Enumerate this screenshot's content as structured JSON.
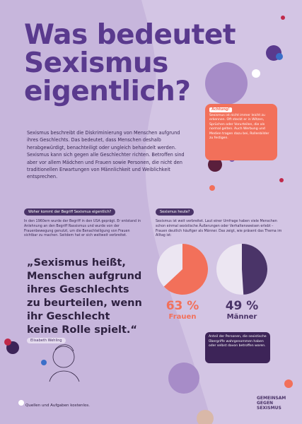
{
  "title": [
    "Was bedeutet",
    "Sexismus",
    "eigentlich?"
  ],
  "notice": {
    "heading": "Achtung!",
    "text": "Sexismus ist nicht immer leicht zu erkennen. Oft steckt er in Witzen, Sprüchen oder Vorurteilen, die als normal gelten. Auch Werbung und Medien tragen dazu bei, Rollenbilder zu festigen."
  },
  "intro": "Sexismus beschreibt die Diskriminierung von Menschen aufgrund ihres Geschlechts. Das bedeutet, dass Menschen deshalb herabgewürdigt, benachteiligt oder ungleich behandelt werden. Sexismus kann sich gegen alle Geschlechter richten. Betroffen sind aber vor allem Mädchen und Frauen sowie Personen, die nicht den traditionellen Erwartungen von Männlichkeit und Weiblichkeit entsprechen.",
  "sections": [
    {
      "heading": "Woher kommt der Begriff Sexismus eigentlich?",
      "text": "In den 1960ern wurde der Begriff in den USA geprägt. Er entstand in Anlehnung an den Begriff Rassismus und wurde von der Frauenbewegung genutzt, um die Benachteiligung von Frauen sichtbar zu machen. Seitdem hat er sich weltweit verbreitet."
    },
    {
      "heading": "Sexismus heute?",
      "text": "Sexismus ist weit verbreitet. Laut einer Umfrage haben viele Menschen schon einmal sexistische Äußerungen oder Verhaltensweisen erlebt – Frauen deutlich häufiger als Männer. Das zeigt, wie präsent das Thema im Alltag ist:"
    }
  ],
  "quote": {
    "lines": [
      "„Sexismus heißt,",
      "Menschen aufgrund",
      "ihres Geschlechts",
      "zu beurteilen, wenn",
      "ihr Geschlecht",
      "keine Rolle spielt.“"
    ],
    "author": "Elisabeth Wehling"
  },
  "stats": [
    {
      "value": 63,
      "label": "63 %",
      "group": "Frauen",
      "color": "#f2705a"
    },
    {
      "value": 49,
      "label": "49 %",
      "group": "Männer",
      "color": "#4a3468"
    }
  ],
  "callout": "Anteil der Personen, die sexistische Übergriffe wahrgenommen haben oder selbst davon betroffen waren.",
  "footer": {
    "sources": "Quellen und Aufgaben kostenlos.",
    "logo": [
      "GEMEINSAM",
      "GEGEN",
      "SEXISMUS"
    ]
  }
}
